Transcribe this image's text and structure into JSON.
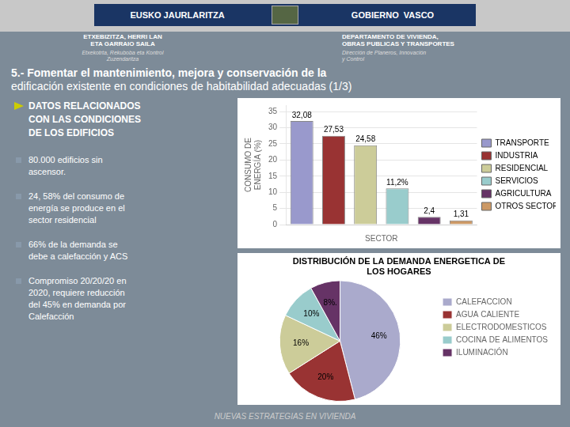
{
  "title": [
    "5.- Fomentar el mantenimiento, mejora y conservación de la",
    "edificación existente en condiciones de habitabilidad adecuadas (1/3)"
  ],
  "annotations": [
    "EUSKO JAURLARITZA",
    "GOBIERNO  VASCO",
    "ETXEBIZITZA, HERRI LAN\nETA GARRAIO SAILA",
    "Etxekotrta, Rekuboba eta Kontrol\nZuzendaritza",
    "DEPARTAMENTO DE VIVIENDA,\nOBRAS PUBLICAS Y TRANSPORTES",
    "Dirección de Planeros, Innovación\ny Control",
    "DATOS RELACIONADOS\nCON LAS CONDICIONES\nDE LOS EDIFICIOS",
    "80.000 edificios sin\nascensor.",
    "24, 58% del consumo de\nenergía se produce en el\nsector residencial",
    "66% de la demanda se\ndebe a calefacción y ACS",
    "Compromiso 20/20/20 en\n2020, requiere reducción\ndel 45% en demanda por\nCalefacción",
    "NUEVAS ESTRATEGIAS EN VIVIENDA"
  ],
  "chart_data": [
    {
      "type": "bar",
      "categories": [
        "TRANSPORTE",
        "INDUSTRIA",
        "RESIDENCIAL",
        "SERVICIOS",
        "AGRICULTURA",
        "OTROS SECTORES"
      ],
      "values": [
        32.08,
        27.53,
        24.58,
        11.2,
        2.4,
        1.31
      ],
      "value_labels": [
        "32,08",
        "27,53",
        "24,58",
        "11,2%",
        "2,4",
        "1,31"
      ],
      "data_labels": true,
      "colors": [
        "#9999cc",
        "#993333",
        "#cccc99",
        "#99cccc",
        "#663366",
        "#cc9966"
      ],
      "x_label": "SECTOR",
      "y_label": "CONSUMO DE\nENERGÍA (%)",
      "ylim": [
        0,
        37
      ],
      "yticks": [
        0,
        5,
        10,
        15,
        20,
        25,
        30,
        35
      ],
      "grid": true,
      "legend": "right",
      "tick_labels": "y"
    },
    {
      "type": "pie",
      "title": "DISTRIBUCIÓN DE LA DEMANDA ENERGETICA DE\nLOS HOGARES",
      "categories": [
        "CALEFACCION",
        "AGUA CALIENTE",
        "ELECTRODOMESTICOS",
        "COCINA DE ALIMENTOS",
        "ILUMINACIÓN"
      ],
      "values": [
        46,
        20,
        16,
        10,
        8
      ],
      "value_labels": [
        "46%",
        "20%",
        "16%",
        "10%",
        "8%."
      ],
      "data_labels": true,
      "colors": [
        "#aaaacc",
        "#993333",
        "#cccc99",
        "#99cccc",
        "#663366"
      ],
      "legend": "right"
    }
  ]
}
